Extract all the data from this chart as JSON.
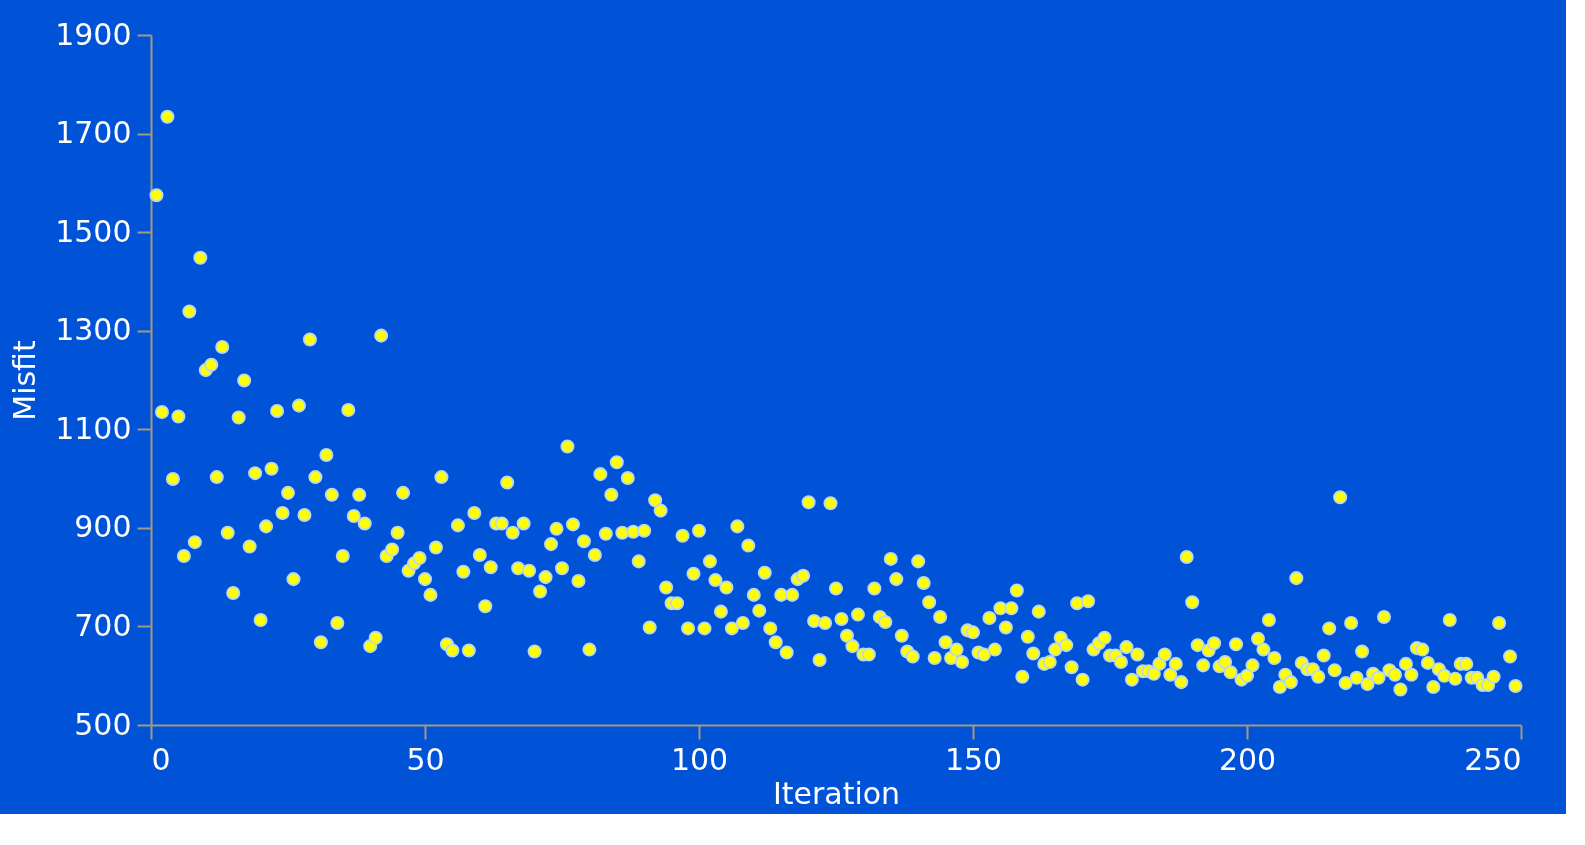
{
  "chart_data": {
    "type": "scatter",
    "xlabel": "Iteration",
    "ylabel": "Misfit",
    "xlim": [
      0,
      250
    ],
    "xticks": [
      0,
      50,
      100,
      150,
      200,
      250
    ],
    "ylim": [
      500,
      1900
    ],
    "yticks": [
      500,
      700,
      900,
      1100,
      1300,
      1500,
      1700,
      1900
    ],
    "marker": "circle",
    "series": [
      {
        "color": "#ffff00",
        "x": [
          1,
          2,
          3,
          4,
          5,
          6,
          7,
          8,
          9,
          10,
          11,
          12,
          13,
          14,
          15,
          16,
          17,
          18,
          19,
          20,
          21,
          22,
          23,
          24,
          25,
          26,
          27,
          28,
          29,
          30,
          31,
          32,
          33,
          34,
          35,
          36,
          37,
          38,
          39,
          40,
          41,
          42,
          43,
          44,
          45,
          46,
          47,
          48,
          49,
          50,
          51,
          52,
          53,
          54,
          55,
          56,
          57,
          58,
          59,
          60,
          61,
          62,
          63,
          64,
          65,
          66,
          67,
          68,
          69,
          70,
          71,
          72,
          73,
          74,
          75,
          76,
          77,
          78,
          79,
          80,
          81,
          82,
          83,
          84,
          85,
          86,
          87,
          88,
          89,
          90,
          91,
          92,
          93,
          94,
          95,
          96,
          97,
          98,
          99,
          100,
          101,
          102,
          103,
          104,
          105,
          106,
          107,
          108,
          109,
          110,
          111,
          112,
          113,
          114,
          115,
          116,
          117,
          118,
          119,
          120,
          121,
          122,
          123,
          124,
          125,
          126,
          127,
          128,
          129,
          130,
          131,
          132,
          133,
          134,
          135,
          136,
          137,
          138,
          139,
          140,
          141,
          142,
          143,
          144,
          145,
          146,
          147,
          148,
          149,
          150,
          151,
          152,
          153,
          154,
          155,
          156,
          157,
          158,
          159,
          160,
          161,
          162,
          163,
          164,
          165,
          166,
          167,
          168,
          169,
          170,
          171,
          172,
          173,
          174,
          175,
          176,
          177,
          178,
          179,
          180,
          181,
          182,
          183,
          184,
          185,
          186,
          187,
          188,
          189,
          190,
          191,
          192,
          193,
          194,
          195,
          196,
          197,
          198,
          199,
          200,
          201,
          202,
          203,
          204,
          205,
          206,
          207,
          208,
          209,
          210,
          211,
          212,
          213,
          214,
          215,
          216,
          217,
          218,
          219,
          220,
          221,
          222,
          223,
          224,
          225,
          226,
          227,
          228,
          229,
          230,
          231,
          232,
          233,
          234,
          235,
          236,
          237,
          238,
          239,
          240,
          241,
          242,
          243,
          244,
          245,
          246,
          248,
          249
        ],
        "values": [
          1575,
          1135,
          1734,
          999,
          1126,
          843,
          1339,
          871,
          1448,
          1220,
          1231,
          1003,
          1267,
          890,
          768,
          1124,
          1199,
          862,
          1011,
          713,
          903,
          1020,
          1137,
          930,
          971,
          796,
          1148,
          926,
          1282,
          1003,
          668,
          1048,
          967,
          707,
          843,
          1139,
          924,
          967,
          909,
          660,
          677,
          1290,
          843,
          856,
          890,
          971,
          813,
          828,
          839,
          796,
          764,
          860,
          1003,
          664,
          651,
          905,
          811,
          651,
          930,
          845,
          741,
          820,
          909,
          909,
          992,
          890,
          818,
          909,
          813,
          649,
          771,
          800,
          867,
          898,
          818,
          1065,
          907,
          792,
          873,
          653,
          845,
          1009,
          888,
          967,
          1033,
          890,
          1001,
          892,
          832,
          894,
          698,
          956,
          935,
          779,
          747,
          747,
          884,
          696,
          807,
          894,
          696,
          832,
          794,
          730,
          779,
          696,
          903,
          707,
          864,
          764,
          732,
          809,
          696,
          668,
          764,
          647,
          764,
          796,
          803,
          952,
          711,
          632,
          707,
          950,
          777,
          715,
          681,
          660,
          724,
          643,
          643,
          777,
          719,
          709,
          837,
          796,
          681,
          649,
          639,
          832,
          788,
          749,
          636,
          719,
          668,
          636,
          653,
          628,
          692,
          688,
          647,
          643,
          717,
          653,
          737,
          698,
          737,
          773,
          598,
          679,
          645,
          730,
          624,
          628,
          653,
          677,
          662,
          617,
          747,
          592,
          751,
          653,
          666,
          677,
          641,
          641,
          628,
          658,
          592,
          643,
          609,
          609,
          604,
          624,
          643,
          602,
          624,
          587,
          841,
          749,
          662,
          621,
          651,
          666,
          619,
          628,
          607,
          664,
          592,
          600,
          621,
          675,
          653,
          713,
          636,
          577,
          602,
          587,
          798,
          626,
          613,
          613,
          598,
          641,
          696,
          611,
          962,
          585,
          707,
          596,
          649,
          583,
          604,
          596,
          719,
          611,
          602,
          572,
          624,
          602,
          656,
          653,
          626,
          577,
          613,
          600,
          713,
          594,
          624,
          624,
          596,
          596,
          581,
          581,
          598,
          707,
          639,
          579
        ]
      }
    ]
  }
}
